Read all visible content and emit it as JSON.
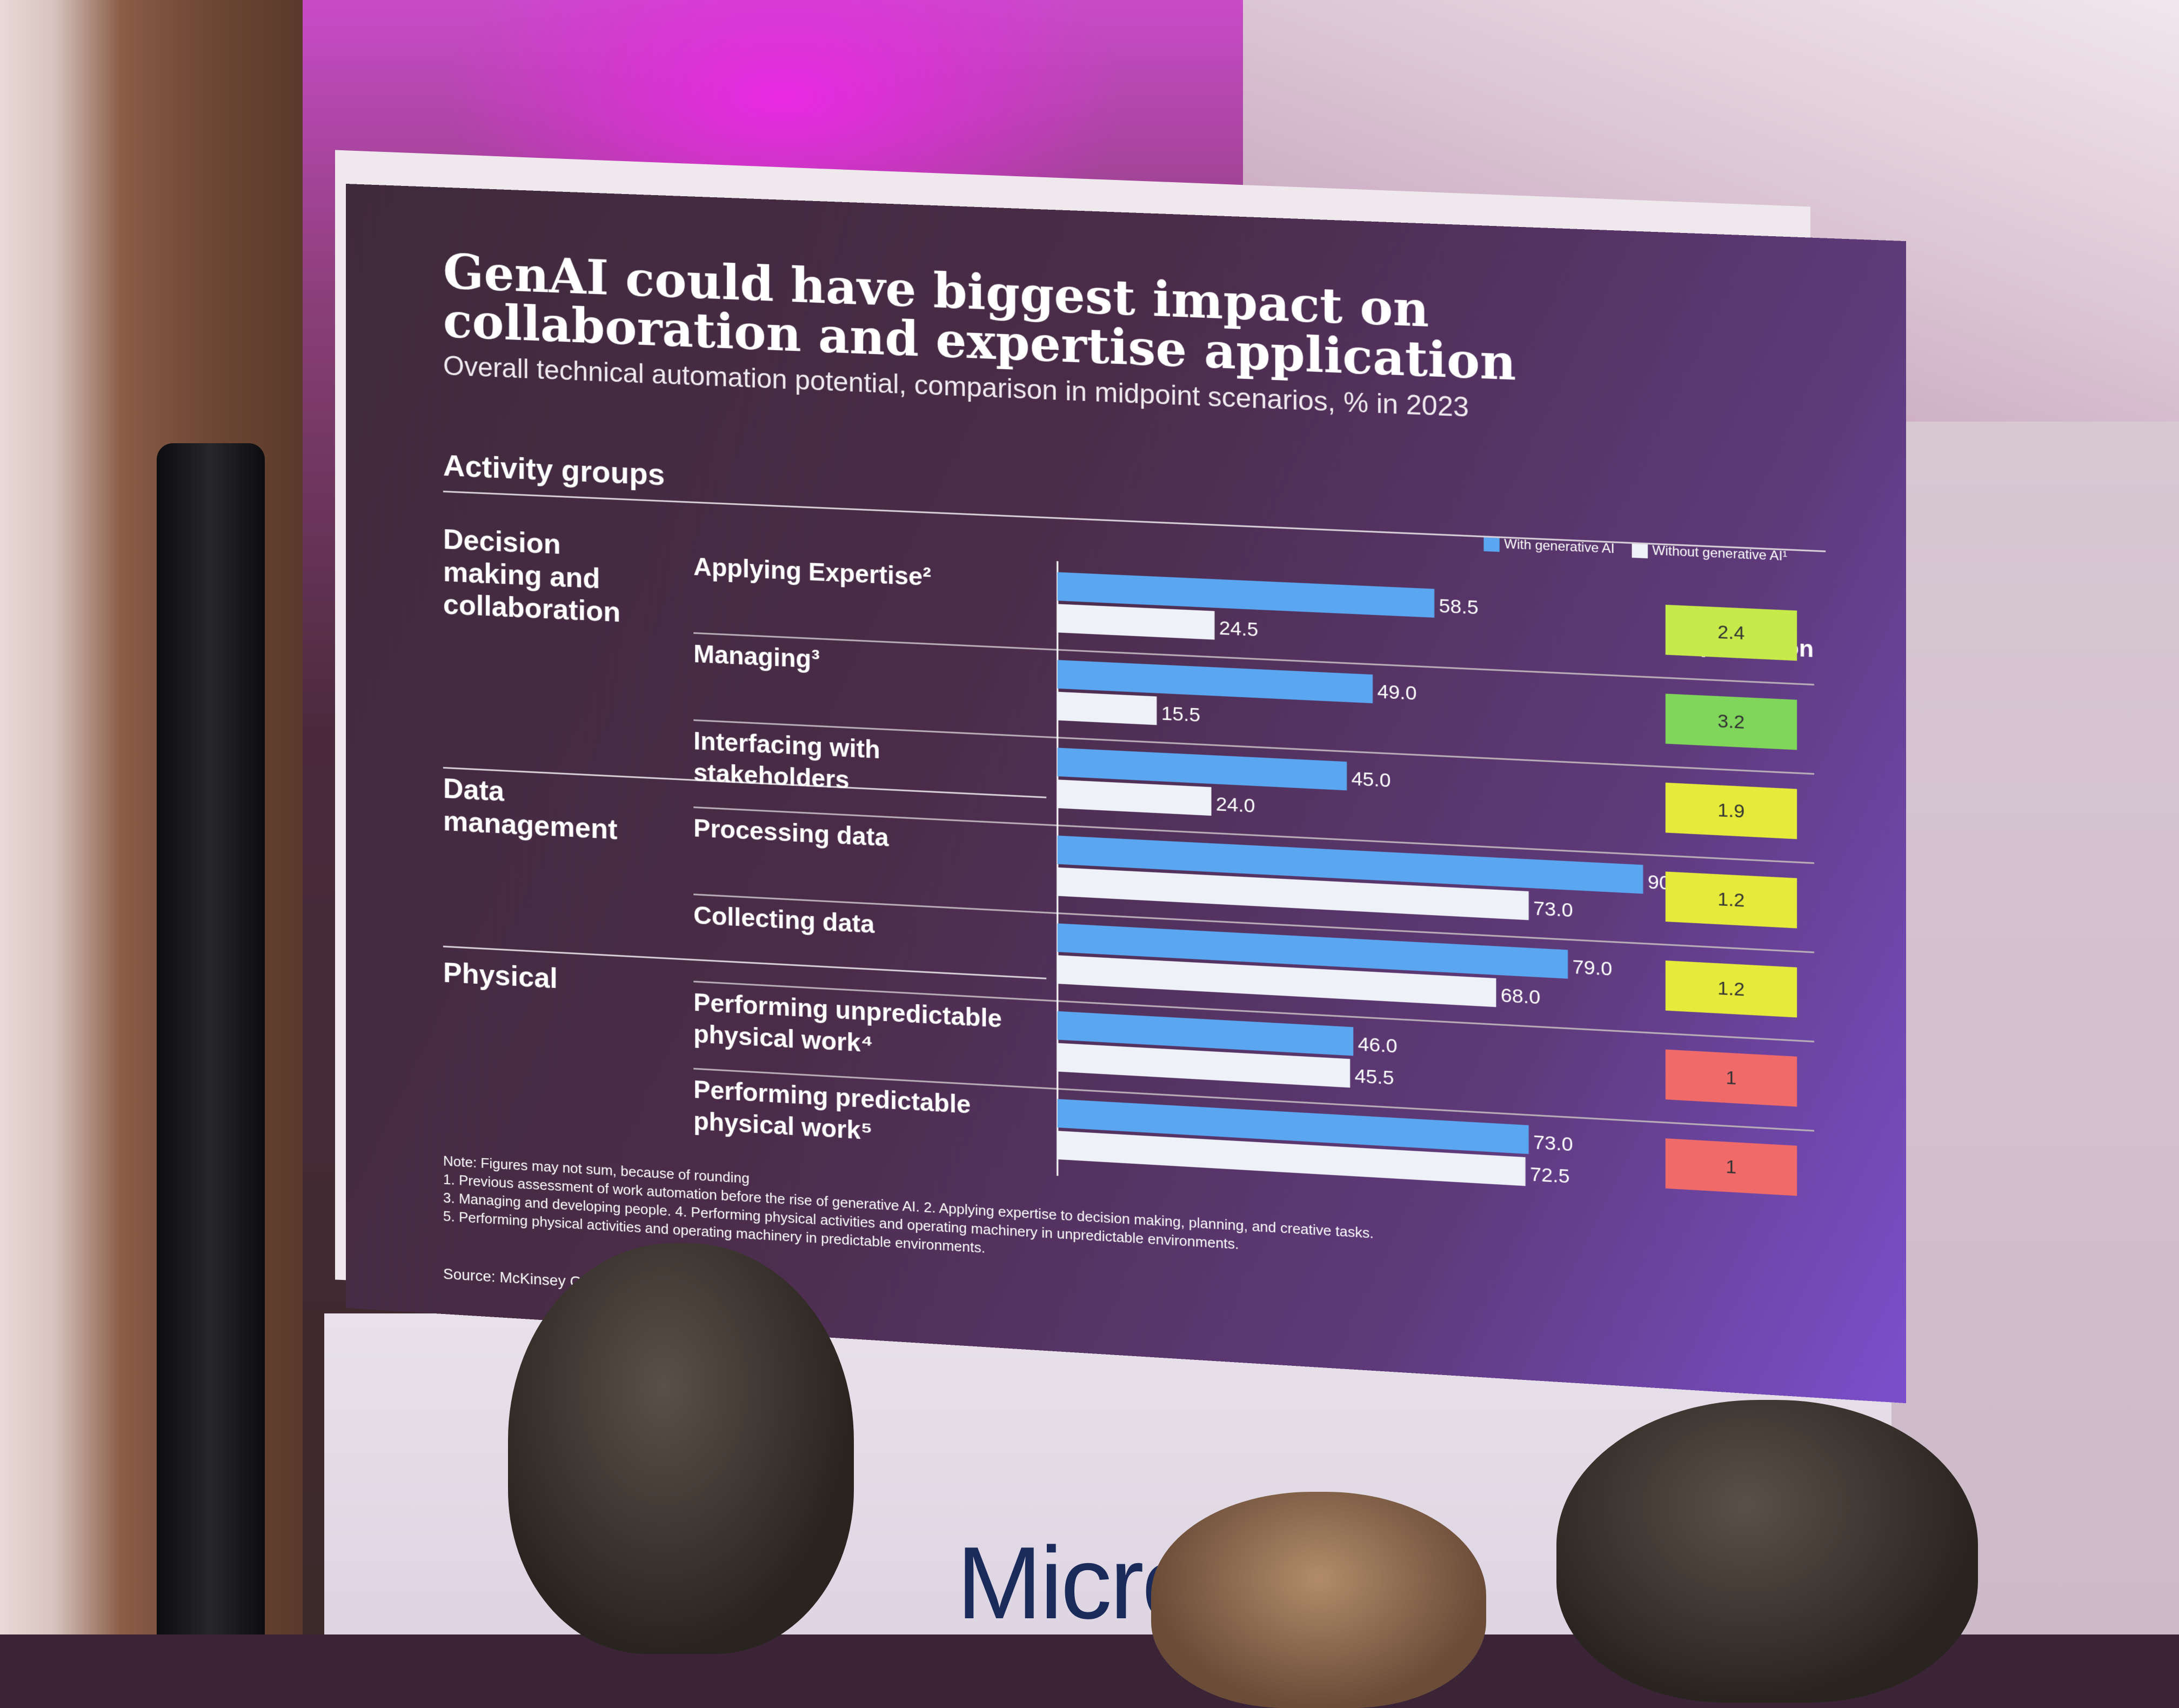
{
  "slide": {
    "title": "GenAI could have biggest impact on collaboration and expertise application",
    "subtitle": "Overall technical automation potential, comparison in midpoint scenarios, % in 2023",
    "activity_groups_header": "Activity groups",
    "amplification_header": "GenAI amplification",
    "legend": {
      "with_label": "With generative AI",
      "without_label": "Without generative AI¹",
      "with_color": "#5aa6f0",
      "without_color": "#eef2f8"
    },
    "groups": [
      {
        "label": "Decision making and collaboration"
      },
      {
        "label": "Data management"
      },
      {
        "label": "Physical"
      }
    ],
    "notes": [
      "Note: Figures may not sum, because of rounding",
      "1.    Previous assessment of work automation before the rise of generative AI.    2.    Applying expertise to decision making, planning, and creative tasks.",
      "3.    Managing and developing people. 4. Performing physical activities and operating machinery in unpredictable environments.",
      "5.    Performing physical activities and operating machinery in predictable environments."
    ],
    "source": "Source: McKinsey Gl"
  },
  "background": {
    "banner_text": "Micros"
  },
  "chart_data": {
    "type": "bar",
    "orientation": "horizontal",
    "title": "GenAI could have biggest impact on collaboration and expertise application",
    "subtitle": "Overall technical automation potential, comparison in midpoint scenarios, % in 2023",
    "categories": [
      "Applying Expertise²",
      "Managing³",
      "Interfacing with stakeholders",
      "Processing data",
      "Collecting data",
      "Performing unpredictable physical work⁴",
      "Performing predictable physical work⁵"
    ],
    "category_groups": [
      "Decision making and collaboration",
      "Decision making and collaboration",
      "Decision making and collaboration",
      "Data management",
      "Data management",
      "Physical",
      "Physical"
    ],
    "series": [
      {
        "name": "With generative AI",
        "color": "#5aa6f0",
        "values": [
          58.5,
          49.0,
          45.0,
          90.5,
          79.0,
          46.0,
          73.0
        ],
        "labels": [
          "58.5",
          "49.0",
          "45.0",
          "90.5",
          "79.0",
          "46.0",
          "73.0"
        ]
      },
      {
        "name": "Without generative AI¹",
        "color": "#eef2f8",
        "values": [
          24.5,
          15.5,
          24.0,
          73.0,
          68.0,
          45.5,
          72.5
        ],
        "labels": [
          "24.5",
          "15.5",
          "24.0",
          "73.0",
          "68.0",
          "45.5",
          "72.5"
        ]
      }
    ],
    "amplification": {
      "label": "GenAI amplification",
      "values": [
        "2.4",
        "3.2",
        "1.9",
        "1.2",
        "1.2",
        "1",
        "1"
      ],
      "colors": [
        "#c6ea4a",
        "#7fd65a",
        "#e6ea3a",
        "#e6ea3a",
        "#e6ea3a",
        "#f06a6a",
        "#f06a6a"
      ]
    },
    "xlim": [
      0,
      100
    ],
    "grid": false,
    "legend_position": "top-right"
  }
}
